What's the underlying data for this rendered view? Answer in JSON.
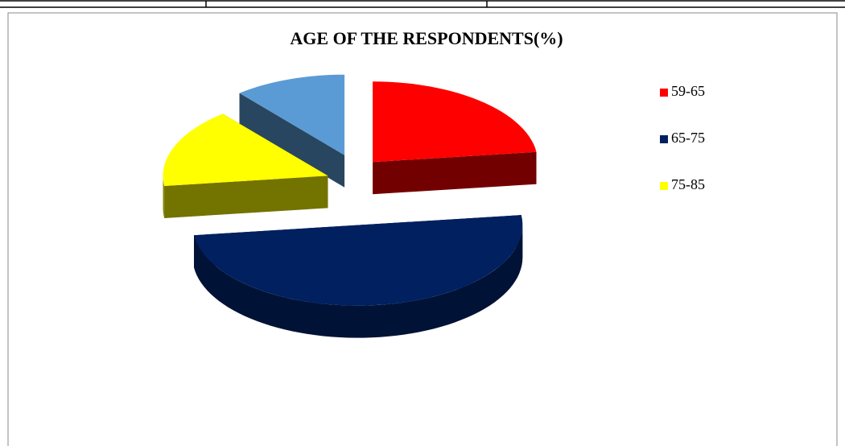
{
  "chart_data": {
    "type": "pie",
    "title": "AGE OF THE RESPONDENTS(%)",
    "categories": [
      "59-65",
      "65-75",
      "75-85",
      null
    ],
    "values": [
      23,
      50,
      16,
      11
    ],
    "colors": [
      "#ff0000",
      "#002060",
      "#ffff00",
      "#5b9bd5"
    ],
    "legend": "right"
  }
}
